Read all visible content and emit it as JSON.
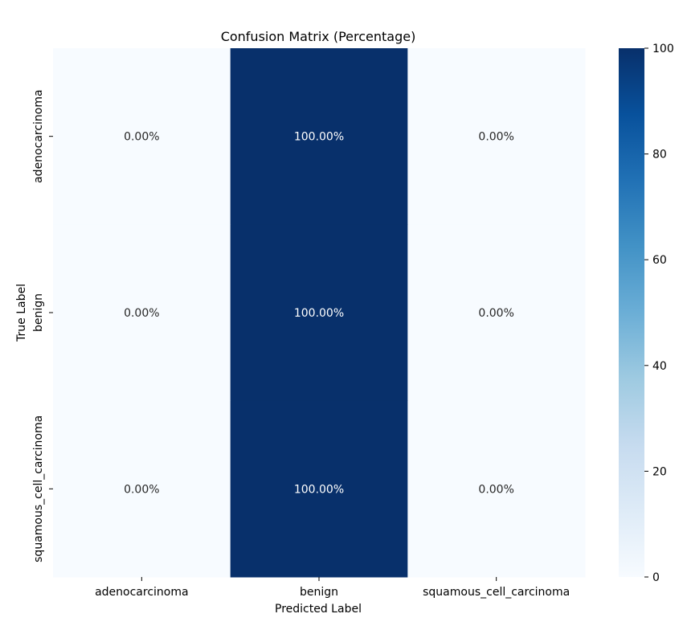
{
  "chart_data": {
    "type": "heatmap",
    "title": "Confusion Matrix (Percentage)",
    "xlabel": "Predicted Label",
    "ylabel": "True Label",
    "x_categories": [
      "adenocarcinoma",
      "benign",
      "squamous_cell_carcinoma"
    ],
    "y_categories": [
      "adenocarcinoma",
      "benign",
      "squamous_cell_carcinoma"
    ],
    "values": [
      [
        0.0,
        100.0,
        0.0
      ],
      [
        0.0,
        100.0,
        0.0
      ],
      [
        0.0,
        100.0,
        0.0
      ]
    ],
    "cell_labels": [
      [
        "0.00%",
        "100.00%",
        "0.00%"
      ],
      [
        "0.00%",
        "100.00%",
        "0.00%"
      ],
      [
        "0.00%",
        "100.00%",
        "0.00%"
      ]
    ],
    "colorbar": {
      "min": 0,
      "max": 100,
      "ticks": [
        "0",
        "20",
        "40",
        "60",
        "80",
        "100"
      ],
      "colormap": "Blues"
    },
    "colors": {
      "low": "#f7fbff",
      "high": "#08306b",
      "text_light": "#ffffff",
      "text_dark": "#262626"
    }
  }
}
